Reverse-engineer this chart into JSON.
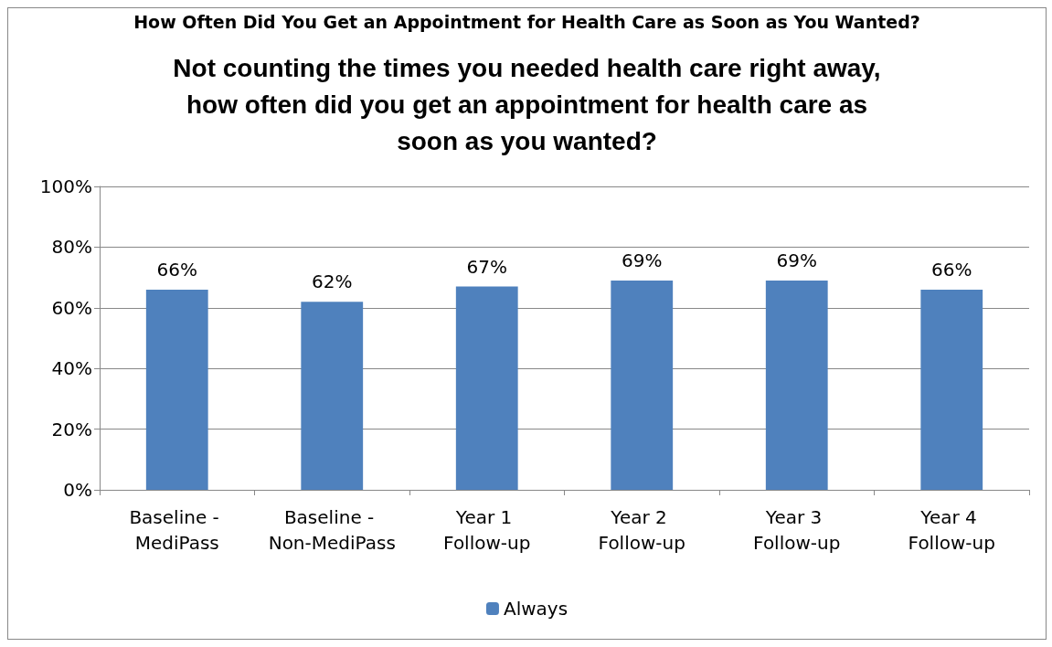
{
  "chart_data": {
    "type": "bar",
    "title": "How Often Did You Get an Appointment for Health Care as Soon as You Wanted?",
    "subtitle": "Not counting the times you needed health care right away,\nhow often did you get an appointment for health care as\nsoon as you wanted?",
    "categories": [
      "Baseline - MediPass",
      "Baseline - Non-MediPass",
      "Year 1 Follow-up",
      "Year 2 Follow-up",
      "Year 3 Follow-up",
      "Year 4 Follow-up"
    ],
    "series": [
      {
        "name": "Always",
        "color": "#4f81bd",
        "values": [
          66,
          62,
          67,
          69,
          69,
          66
        ],
        "value_labels": [
          "66%",
          "62%",
          "67%",
          "69%",
          "69%",
          "66%"
        ]
      }
    ],
    "ylim": [
      0,
      100
    ],
    "yticks": [
      {
        "value": 0,
        "label": "0%"
      },
      {
        "value": 20,
        "label": "20%"
      },
      {
        "value": 40,
        "label": "40%"
      },
      {
        "value": 60,
        "label": "60%"
      },
      {
        "value": 80,
        "label": "80%"
      },
      {
        "value": 100,
        "label": "100%"
      }
    ],
    "grid": "y",
    "legend": "bottom"
  }
}
